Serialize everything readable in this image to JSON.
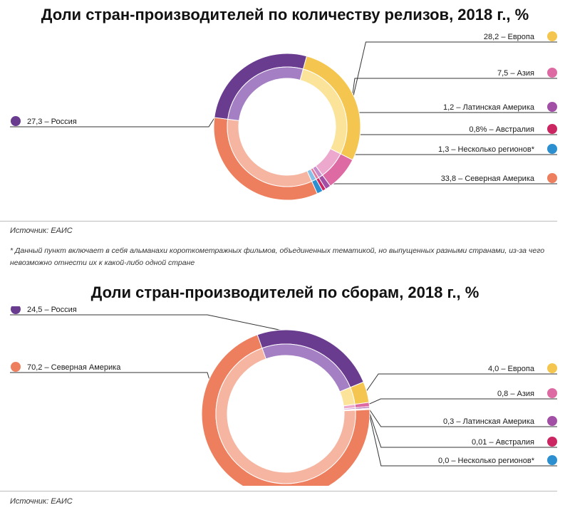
{
  "chart_data": [
    {
      "type": "donut",
      "title": "Доли стран-производителей по количеству релизов, 2018 г., %",
      "unit": "%",
      "series": [
        {
          "key": "europe",
          "value": 28.2,
          "label": "28,2 – Европа",
          "dark": "#F5C64F",
          "light": "#FBE49A",
          "dot": "#F5C64F"
        },
        {
          "key": "asia",
          "value": 7.5,
          "label": "7,5 – Азия",
          "dark": "#DE6AA4",
          "light": "#EDA8CD",
          "dot": "#DE6AA4"
        },
        {
          "key": "latam",
          "value": 1.2,
          "label": "1,2 – Латинская Америка",
          "dark": "#A250A6",
          "light": "#C78BC9",
          "dot": "#A250A6"
        },
        {
          "key": "australia",
          "value": 0.8,
          "label": "0,8%  – Австралия",
          "dark": "#CC2662",
          "light": "#E37A9F",
          "dot": "#CC2662"
        },
        {
          "key": "multi",
          "value": 1.3,
          "label": "1,3 – Несколько регионов*",
          "dark": "#2C8FCF",
          "light": "#86C0E6",
          "dot": "#2C8FCF"
        },
        {
          "key": "namerica",
          "value": 33.8,
          "label": "33,8 – Северная Америка",
          "dark": "#EE7F5E",
          "light": "#F6B5A0",
          "dot": "#EE7F5E"
        },
        {
          "key": "russia",
          "value": 27.3,
          "label": "27,3 – Россия",
          "dark": "#6A3C8F",
          "light": "#A47FC4",
          "dot": "#6A3C8F"
        }
      ]
    },
    {
      "type": "donut",
      "title": "Доли стран-производителей по сборам, 2018 г., %",
      "unit": "%",
      "series": [
        {
          "key": "russia",
          "value": 24.5,
          "label": "24,5 – Россия",
          "dark": "#6A3C8F",
          "light": "#A47FC4",
          "dot": "#6A3C8F"
        },
        {
          "key": "europe",
          "value": 4.0,
          "label": "4,0 – Европа",
          "dark": "#F5C64F",
          "light": "#FBE49A",
          "dot": "#F5C64F"
        },
        {
          "key": "asia",
          "value": 0.8,
          "label": "0,8 – Азия",
          "dark": "#DE6AA4",
          "light": "#EDA8CD",
          "dot": "#DE6AA4"
        },
        {
          "key": "latam",
          "value": 0.3,
          "label": "0,3 – Латинская Америка",
          "dark": "#A250A6",
          "light": "#C78BC9",
          "dot": "#A250A6"
        },
        {
          "key": "australia",
          "value": 0.01,
          "label": "0,01 – Австралия",
          "dark": "#CC2662",
          "light": "#E37A9F",
          "dot": "#CC2662"
        },
        {
          "key": "multi",
          "value": 0.0,
          "label": "0,0 – Несколько регионов*",
          "dark": "#2C8FCF",
          "light": "#86C0E6",
          "dot": "#2C8FCF"
        },
        {
          "key": "namerica",
          "value": 70.2,
          "label": "70,2 – Северная Америка",
          "dark": "#EE7F5E",
          "light": "#F6B5A0",
          "dot": "#EE7F5E"
        }
      ]
    }
  ],
  "source1": "Источник: ЕАИС",
  "footnote": "* Данный пункт включает в себя альманахи короткометражных фильмов, объединенных тематикой, но выпущенных разными странами, из-за чего невозможно отнести их к какой-либо одной стране",
  "source2": "Источник: ЕАИС"
}
